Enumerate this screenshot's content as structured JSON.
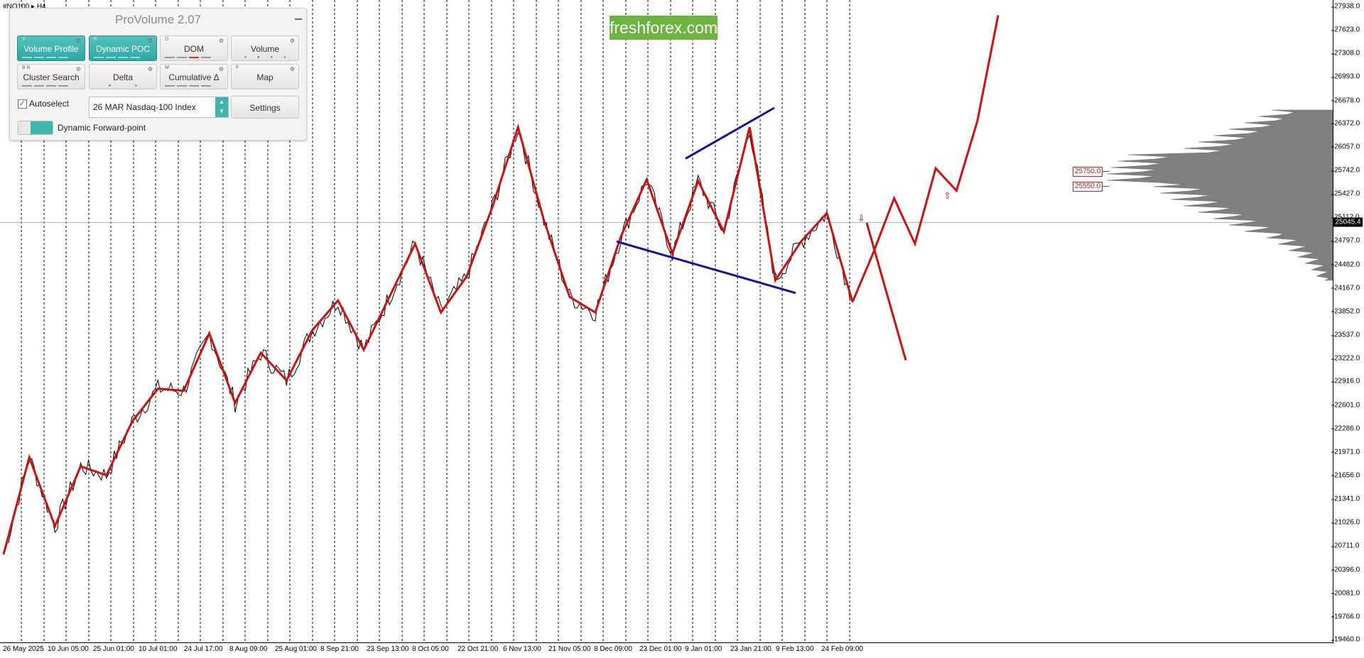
{
  "symbol": "#NQ100 ▸ H4",
  "panel": {
    "title": "ProVolume 2.07",
    "tiles": [
      {
        "label": "Volume Profile",
        "key": "V",
        "active": true
      },
      {
        "label": "Dynamic POC",
        "key": "P",
        "active": true
      },
      {
        "label": "DOM",
        "key": "D",
        "active": false
      },
      {
        "label": "Volume",
        "key": "",
        "active": false
      },
      {
        "label": "Cluster Search",
        "key": "B  N",
        "active": false
      },
      {
        "label": "Delta",
        "key": "",
        "active": false
      },
      {
        "label": "Cumulative Δ",
        "key": "M",
        "active": false
      },
      {
        "label": "Map",
        "key": "F",
        "active": false
      }
    ],
    "autoselect_label": "Autoselect",
    "autoselect_checked": true,
    "instrument": "26 MAR Nasdaq-100 Index",
    "settings_label": "Settings",
    "forward_point_label": "Dynamic Forward-point"
  },
  "logo_text": "freshforex.com",
  "price_axis": {
    "ticks": [
      "27938.0",
      "27623.0",
      "27308.0",
      "26993.0",
      "26678.0",
      "26372.0",
      "26057.0",
      "25742.0",
      "25427.0",
      "25112.0",
      "24797.0",
      "24482.0",
      "24167.0",
      "23852.0",
      "23537.0",
      "23222.0",
      "22916.0",
      "22601.0",
      "22286.0",
      "21971.0",
      "21656.0",
      "21341.0",
      "21026.0",
      "20711.0",
      "20396.0",
      "20081.0",
      "19766.0",
      "19460.0"
    ],
    "current_price": "25045.4"
  },
  "time_axis": {
    "ticks": [
      "26 May 2025",
      "10 Jun 05:00",
      "25 Jun 01:00",
      "10 Jul 01:00",
      "24 Jul 17:00",
      "8 Aug 09:00",
      "25 Aug 01:00",
      "8 Sep 21:00",
      "23 Sep 13:00",
      "8 Oct 05:00",
      "22 Oct 21:00",
      "6 Nov 13:00",
      "21 Nov 05:00",
      "8 Dec 09:00",
      "23 Dec 01:00",
      "9 Jan 01:00",
      "23 Jan 21:00",
      "9 Feb 13:00",
      "24 Feb 09:00"
    ]
  },
  "levels": [
    "25750.0",
    "25550.0"
  ],
  "colors": {
    "zigzag": "#cc1111",
    "trend": "#1111aa",
    "profile": "#808080",
    "accent": "#41b4ad",
    "logo": "#6db33f"
  },
  "chart_data": {
    "type": "line",
    "title": "",
    "ylim": [
      19460,
      27938
    ],
    "series": [
      {
        "values": [
          20600,
          21900,
          20980,
          21780,
          21660,
          22380,
          22820,
          22790,
          23560,
          22630,
          23300,
          22930,
          23600,
          24000,
          23340,
          24050,
          24760,
          23840,
          24320,
          25250,
          26320,
          25080,
          24050,
          23840,
          24860,
          25620,
          24630,
          25600,
          24920,
          26320,
          24270,
          24790,
          25170,
          23980
        ],
        "projection": [
          23980,
          24640,
          25370,
          24760,
          25770,
          25470,
          26400,
          27820
        ]
      }
    ]
  }
}
